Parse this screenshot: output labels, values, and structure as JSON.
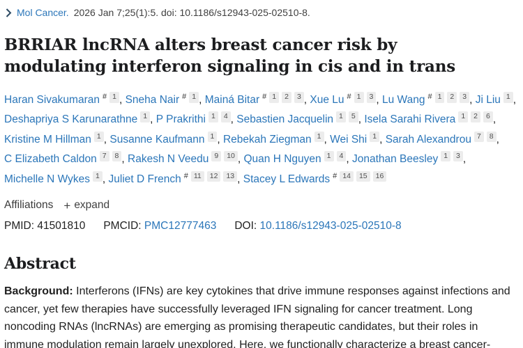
{
  "colors": {
    "link_blue": "#2b76b9",
    "text_dark": "#212121",
    "sup_box_bg": "#ececec",
    "sup_box_text": "#4f4f4f",
    "chevron": "#2c4a63"
  },
  "citation": {
    "journal_link": "Mol Cancer.",
    "details": "2026 Jan 7;25(1):5. doi: 10.1186/s12943-025-02510-8."
  },
  "article": {
    "title": "BRRIAR lncRNA alters breast cancer risk by modulating interferon signaling in cis and in trans"
  },
  "authors": [
    {
      "name": "Haran Sivakumaran",
      "sups": [
        "#",
        "1"
      ]
    },
    {
      "name": "Sneha Nair",
      "sups": [
        "#",
        "1"
      ]
    },
    {
      "name": "Mainá Bitar",
      "sups": [
        "#",
        "1",
        "2",
        "3"
      ]
    },
    {
      "name": "Xue Lu",
      "sups": [
        "#",
        "1",
        "3"
      ]
    },
    {
      "name": "Lu Wang",
      "sups": [
        "#",
        "1",
        "2",
        "3"
      ]
    },
    {
      "name": "Ji Liu",
      "sups": [
        "1"
      ]
    },
    {
      "name": "Deshapriya S Karunarathne",
      "sups": [
        "1"
      ]
    },
    {
      "name": "P Prakrithi",
      "sups": [
        "1",
        "4"
      ]
    },
    {
      "name": "Sebastien Jacquelin",
      "sups": [
        "1",
        "5"
      ]
    },
    {
      "name": "Isela Sarahi Rivera",
      "sups": [
        "1",
        "2",
        "6"
      ]
    },
    {
      "name": "Kristine M Hillman",
      "sups": [
        "1"
      ]
    },
    {
      "name": "Susanne Kaufmann",
      "sups": [
        "1"
      ]
    },
    {
      "name": "Rebekah Ziegman",
      "sups": [
        "1"
      ]
    },
    {
      "name": "Wei Shi",
      "sups": [
        "1"
      ]
    },
    {
      "name": "Sarah Alexandrou",
      "sups": [
        "7",
        "8"
      ]
    },
    {
      "name": "C Elizabeth Caldon",
      "sups": [
        "7",
        "8"
      ]
    },
    {
      "name": "Rakesh N Veedu",
      "sups": [
        "9",
        "10"
      ]
    },
    {
      "name": "Quan H Nguyen",
      "sups": [
        "1",
        "4"
      ]
    },
    {
      "name": "Jonathan Beesley",
      "sups": [
        "1",
        "3"
      ]
    },
    {
      "name": "Michelle N Wykes",
      "sups": [
        "1"
      ]
    },
    {
      "name": "Juliet D French",
      "sups": [
        "#",
        "11",
        "12",
        "13"
      ]
    },
    {
      "name": "Stacey L Edwards",
      "sups": [
        "#",
        "14",
        "15",
        "16"
      ]
    }
  ],
  "affiliations": {
    "label": "Affiliations",
    "expand_icon": "+",
    "expand_label": "expand"
  },
  "ids": {
    "pmid_label": "PMID:",
    "pmid_value": "41501810",
    "pmcid_label": "PMCID:",
    "pmcid_value": "PMC12777463",
    "doi_label": "DOI:",
    "doi_value": "10.1186/s12943-025-02510-8"
  },
  "abstract": {
    "heading": "Abstract",
    "background_label": "Background:",
    "background_text": "Interferons (IFNs) are key cytokines that drive immune responses against infections and cancer, yet few therapies have successfully leveraged IFN signaling for cancer treatment. Long noncoding RNAs (lncRNAs) are emerging as promising therapeutic candidates, but their roles in immune modulation remain largely unexplored. Here, we functionally characterize a breast cancer-"
  }
}
